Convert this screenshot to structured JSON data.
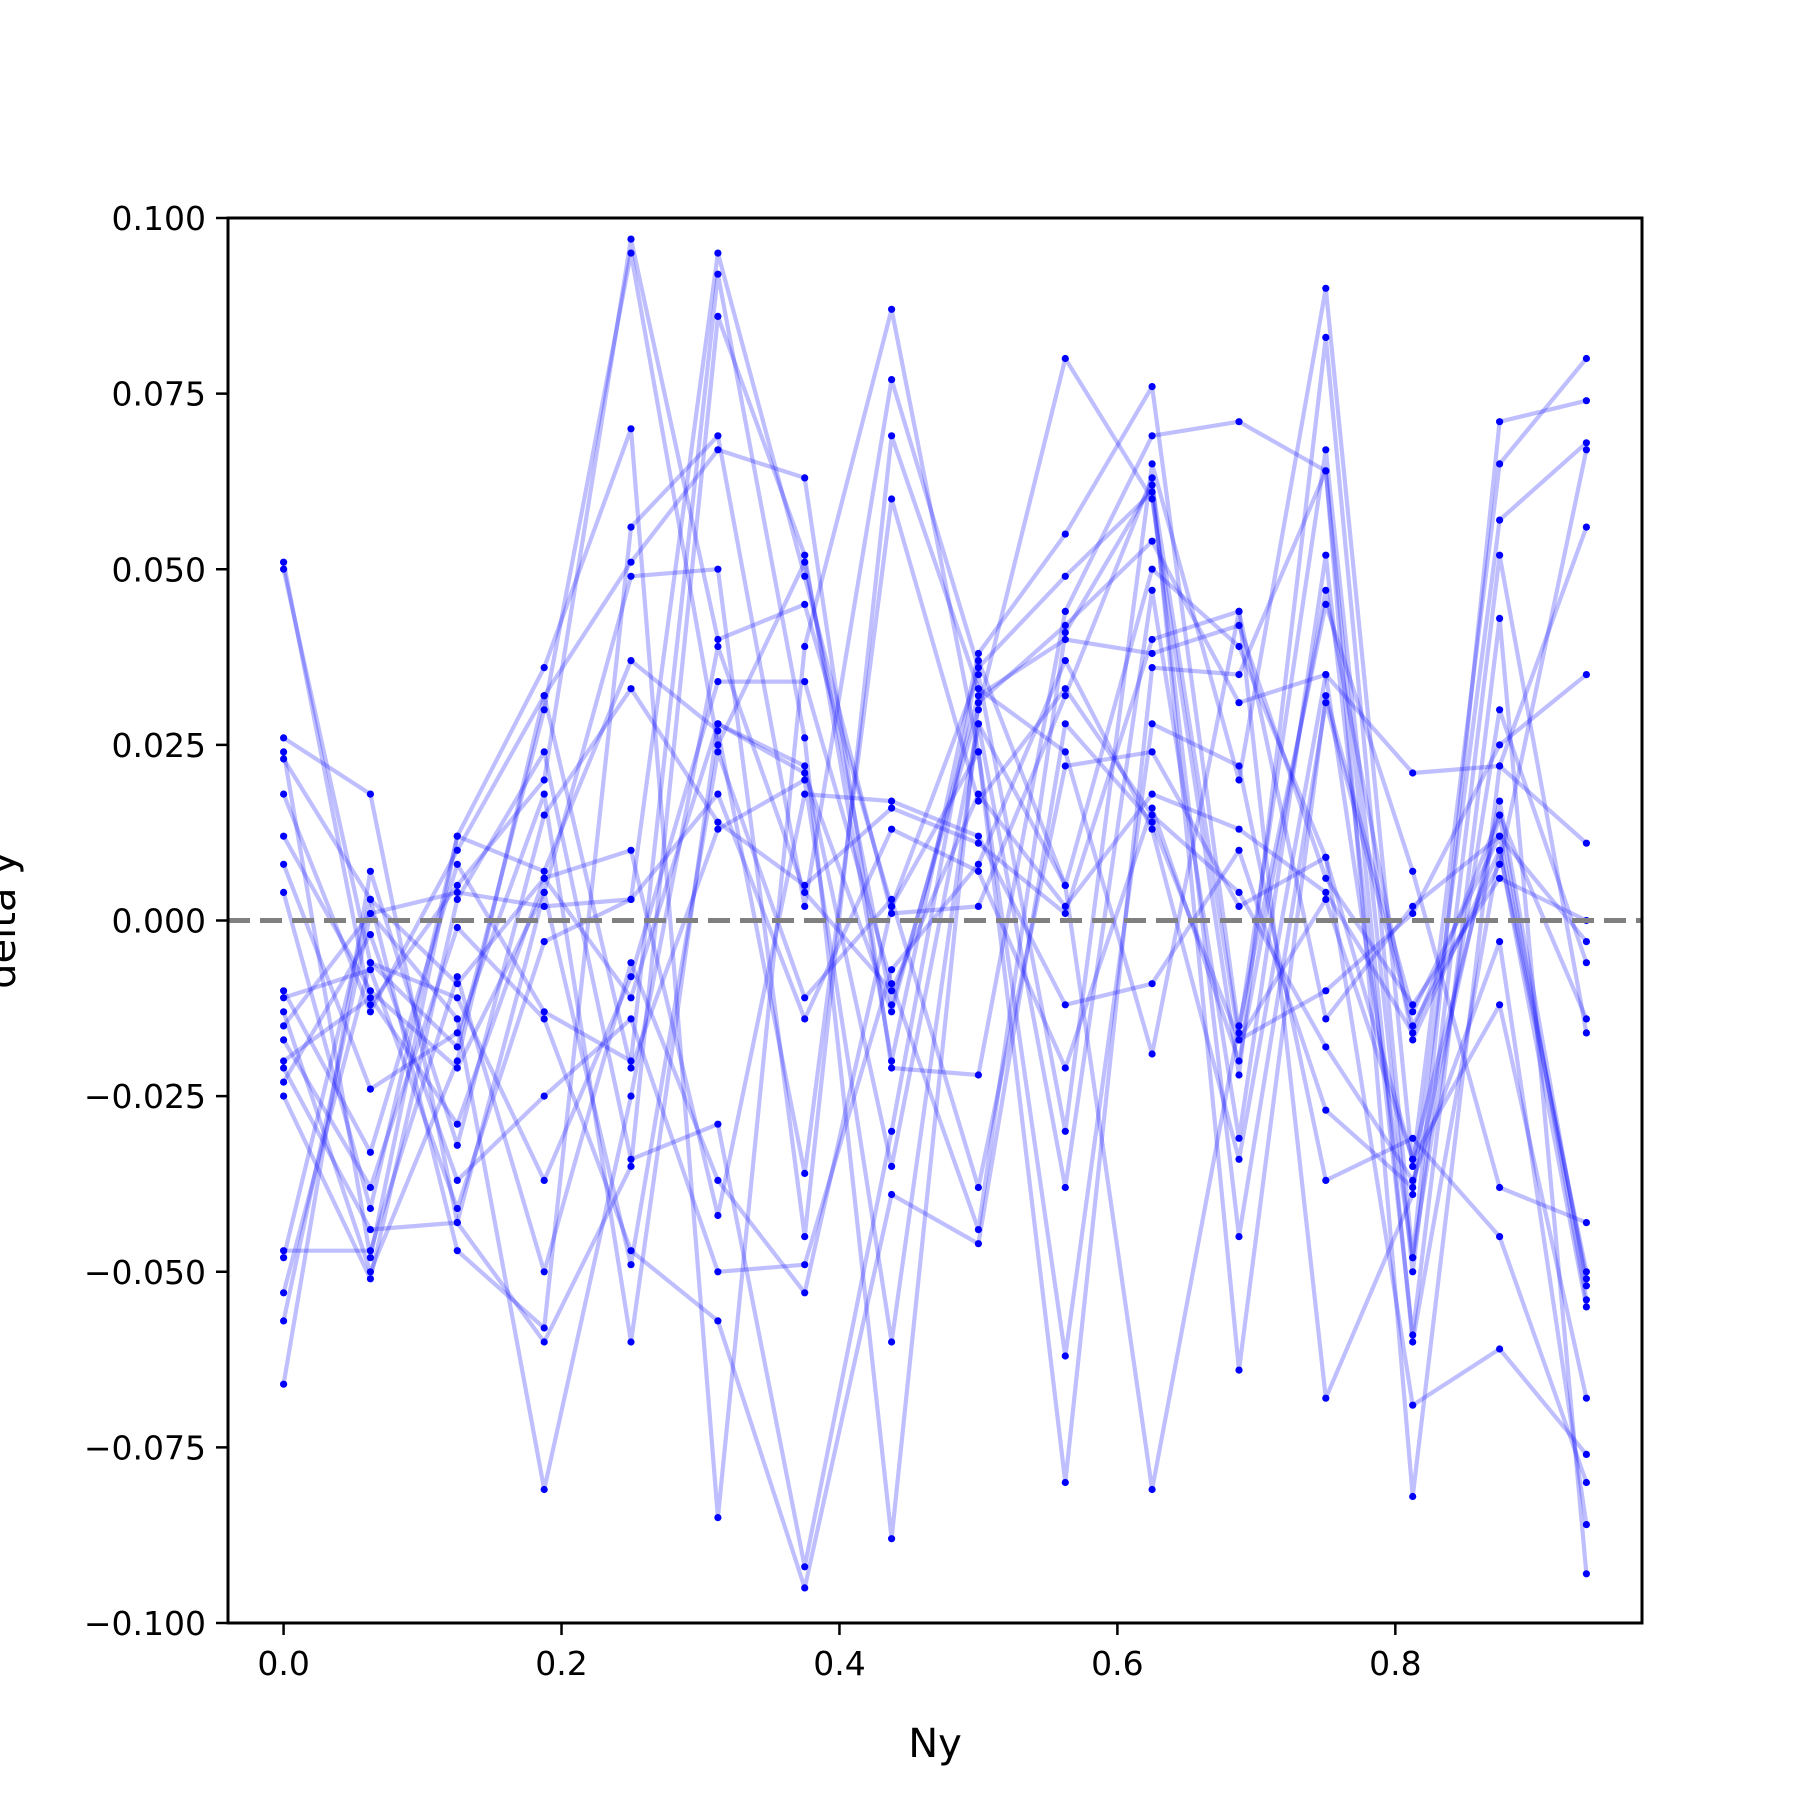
{
  "chart_data": {
    "type": "line",
    "xlabel": "Ny",
    "ylabel": "delta y",
    "xlim": [
      -0.04,
      0.9775
    ],
    "ylim": [
      -0.1,
      0.1
    ],
    "xticks": [
      0.0,
      0.2,
      0.4,
      0.6,
      0.8
    ],
    "xtick_labels": [
      "0.0",
      "0.2",
      "0.4",
      "0.6",
      "0.8"
    ],
    "yticks": [
      -0.1,
      -0.075,
      -0.05,
      -0.025,
      0.0,
      0.025,
      0.05,
      0.075,
      0.1
    ],
    "ytick_labels": [
      "−0.100",
      "−0.075",
      "−0.050",
      "−0.025",
      "0.000",
      "0.025",
      "0.050",
      "0.075",
      "0.100"
    ],
    "reference_line": {
      "y": 0.0,
      "style": "dashed",
      "color": "#808080"
    },
    "grid": false,
    "series_color": "#0000ff",
    "x": [
      0.0,
      0.0625,
      0.125,
      0.1875,
      0.25,
      0.3125,
      0.375,
      0.4375,
      0.5,
      0.5625,
      0.625,
      0.6875,
      0.75,
      0.8125,
      0.875,
      0.9375
    ],
    "series": [
      {
        "values": [
          0.051,
          -0.012,
          0.005,
          0.02,
          0.097,
          0.04,
          0.045,
          0.002,
          0.035,
          -0.03,
          0.065,
          0.02,
          0.09,
          -0.035,
          0.065,
          0.08
        ]
      },
      {
        "values": [
          0.05,
          -0.006,
          -0.018,
          0.03,
          0.095,
          0.025,
          0.051,
          -0.012,
          0.03,
          0.08,
          0.06,
          -0.022,
          0.083,
          -0.048,
          0.071,
          0.074
        ]
      },
      {
        "values": [
          0.026,
          0.018,
          -0.043,
          -0.06,
          -0.035,
          0.086,
          0.052,
          -0.02,
          0.038,
          0.055,
          0.076,
          -0.016,
          0.067,
          -0.05,
          0.052,
          -0.016
        ]
      },
      {
        "values": [
          0.024,
          -0.048,
          0.012,
          0.036,
          0.07,
          -0.085,
          0.039,
          0.087,
          0.024,
          -0.08,
          0.036,
          0.035,
          0.064,
          -0.06,
          0.01,
          -0.05
        ]
      },
      {
        "values": [
          0.023,
          0.003,
          -0.047,
          -0.058,
          0.056,
          0.069,
          0.002,
          0.077,
          0.036,
          0.049,
          0.061,
          -0.045,
          0.031,
          -0.015,
          0.008,
          0.067
        ]
      },
      {
        "values": [
          0.018,
          -0.013,
          0.01,
          0.032,
          0.051,
          0.067,
          0.063,
          -0.021,
          -0.022,
          0.044,
          0.069,
          0.071,
          0.064,
          -0.082,
          0.022,
          0.011
        ]
      },
      {
        "values": [
          0.012,
          -0.01,
          -0.021,
          0.004,
          0.049,
          0.05,
          -0.045,
          0.069,
          0.033,
          0.024,
          -0.019,
          0.044,
          -0.068,
          -0.039,
          0.057,
          0.068
        ]
      },
      {
        "values": [
          0.008,
          -0.024,
          -0.016,
          0.018,
          -0.06,
          0.028,
          0.022,
          -0.035,
          0.028,
          -0.038,
          0.047,
          -0.031,
          0.052,
          -0.059,
          0.043,
          -0.093
        ]
      },
      {
        "values": [
          0.004,
          -0.041,
          0.012,
          0.007,
          0.037,
          0.027,
          -0.036,
          0.06,
          0.017,
          0.033,
          0.015,
          0.004,
          -0.018,
          -0.037,
          -0.003,
          -0.086
        ]
      },
      {
        "values": [
          -0.01,
          -0.033,
          0.008,
          -0.013,
          -0.02,
          0.092,
          0.026,
          -0.088,
          0.031,
          0.042,
          0.054,
          0.031,
          0.035,
          -0.048,
          0.03,
          -0.006
        ]
      },
      {
        "values": [
          -0.011,
          -0.007,
          -0.041,
          -0.003,
          0.003,
          0.018,
          -0.014,
          0.013,
          0.007,
          -0.021,
          0.016,
          -0.02,
          0.047,
          -0.017,
          0.01,
          -0.055
        ]
      },
      {
        "values": [
          -0.013,
          -0.05,
          -0.02,
          0.032,
          -0.021,
          0.013,
          0.02,
          -0.06,
          0.028,
          0.005,
          0.05,
          0.039,
          0.009,
          -0.034,
          0.015,
          -0.014
        ]
      },
      {
        "values": [
          -0.015,
          0.001,
          -0.014,
          -0.081,
          -0.025,
          0.039,
          0.004,
          -0.01,
          0.018,
          0.002,
          0.018,
          0.013,
          0.004,
          -0.016,
          0.015,
          -0.054
        ]
      },
      {
        "values": [
          -0.017,
          -0.038,
          -0.001,
          -0.014,
          -0.047,
          -0.057,
          -0.095,
          -0.039,
          -0.046,
          0.028,
          0.014,
          -0.017,
          0.003,
          -0.034,
          -0.012,
          -0.068
        ]
      },
      {
        "values": [
          -0.02,
          -0.011,
          -0.029,
          0.006,
          0.01,
          -0.042,
          0.018,
          0.017,
          0.012,
          -0.012,
          -0.009,
          0.01,
          -0.027,
          -0.038,
          0.017,
          -0.052
        ]
      },
      {
        "values": [
          -0.021,
          -0.044,
          -0.043,
          0.004,
          -0.049,
          0.024,
          -0.011,
          0.003,
          -0.038,
          0.022,
          0.024,
          0.002,
          0.009,
          -0.069,
          -0.061,
          -0.076
        ]
      },
      {
        "values": [
          -0.023,
          -0.002,
          -0.037,
          -0.025,
          -0.014,
          -0.05,
          -0.049,
          -0.007,
          0.008,
          0.037,
          0.013,
          -0.034,
          0.035,
          0.021,
          0.022,
          0.056
        ]
      },
      {
        "values": [
          -0.025,
          -0.051,
          0.003,
          0.024,
          -0.034,
          -0.029,
          -0.092,
          -0.03,
          0.037,
          0.005,
          -0.081,
          -0.015,
          0.045,
          0.007,
          -0.038,
          -0.043
        ]
      },
      {
        "values": [
          -0.047,
          -0.047,
          -0.008,
          -0.05,
          -0.006,
          -0.037,
          -0.053,
          0.002,
          0.024,
          -0.062,
          0.028,
          0.022,
          -0.037,
          -0.031,
          -0.045,
          -0.08
        ]
      },
      {
        "values": [
          -0.048,
          0.003,
          -0.009,
          0.006,
          -0.011,
          0.028,
          0.021,
          -0.013,
          0.032,
          0.04,
          0.038,
          0.042,
          0.006,
          -0.012,
          0.006,
          0.0
        ]
      },
      {
        "values": [
          -0.053,
          -0.006,
          -0.011,
          -0.037,
          -0.008,
          0.034,
          0.034,
          -0.009,
          -0.044,
          0.041,
          0.062,
          -0.017,
          -0.01,
          0.001,
          0.025,
          0.035
        ]
      },
      {
        "values": [
          -0.057,
          0.001,
          0.004,
          0.002,
          0.003,
          0.095,
          0.049,
          0.001,
          0.002,
          0.032,
          0.063,
          -0.064,
          0.032,
          -0.013,
          0.012,
          -0.051
        ]
      },
      {
        "values": [
          -0.066,
          0.007,
          -0.032,
          0.015,
          0.033,
          0.014,
          0.005,
          0.016,
          0.011,
          0.001,
          0.04,
          0.044,
          -0.014,
          0.002,
          0.012,
          -0.003
        ]
      }
    ]
  }
}
